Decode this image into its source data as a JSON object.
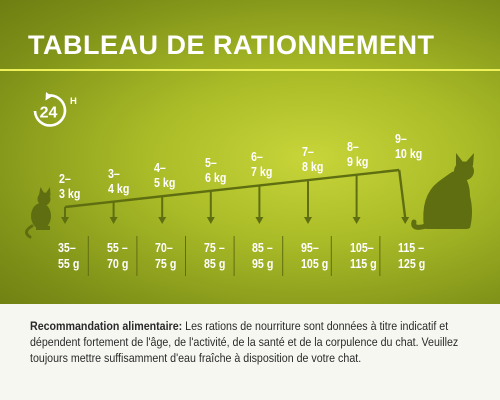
{
  "title": "TABLEAU DE RATIONNEMENT",
  "badge": {
    "number": "24",
    "suffix": "H"
  },
  "scale": [
    {
      "weight_top": "2–",
      "weight_bottom": "3 kg",
      "portion_top": "35–",
      "portion_bottom": "55 g"
    },
    {
      "weight_top": "3–",
      "weight_bottom": "4 kg",
      "portion_top": "55 –",
      "portion_bottom": "70 g"
    },
    {
      "weight_top": "4–",
      "weight_bottom": "5 kg",
      "portion_top": "70–",
      "portion_bottom": "75 g"
    },
    {
      "weight_top": "5–",
      "weight_bottom": "6 kg",
      "portion_top": "75 –",
      "portion_bottom": "85 g"
    },
    {
      "weight_top": "6–",
      "weight_bottom": "7 kg",
      "portion_top": "85 –",
      "portion_bottom": "95 g"
    },
    {
      "weight_top": "7–",
      "weight_bottom": "8 kg",
      "portion_top": "95–",
      "portion_bottom": "105 g"
    },
    {
      "weight_top": "8–",
      "weight_bottom": "9 kg",
      "portion_top": "105–",
      "portion_bottom": "115 g"
    },
    {
      "weight_top": "9–",
      "weight_bottom": "10 kg",
      "portion_top": "115 –",
      "portion_bottom": "125 g"
    }
  ],
  "note": {
    "heading": "Recommandation alimentaire:",
    "body": " Les rations de nourriture sont données à titre indicatif et dépendent fortement de l'âge, de l'activité, de la santé et de la corpulence du chat. Veuillez toujours mettre suffisamment d'eau fraîche à disposition de votre chat."
  },
  "colors": {
    "panel_light": "#c8d53a",
    "panel_dark": "#6e7e12",
    "rule": "#eef05a",
    "graphic": "#5f6e10",
    "text_light": "#ffffff",
    "text_dark": "#2a2a2a"
  },
  "icons": [
    "24h-clock-icon",
    "small-cat-icon",
    "large-cat-icon"
  ]
}
